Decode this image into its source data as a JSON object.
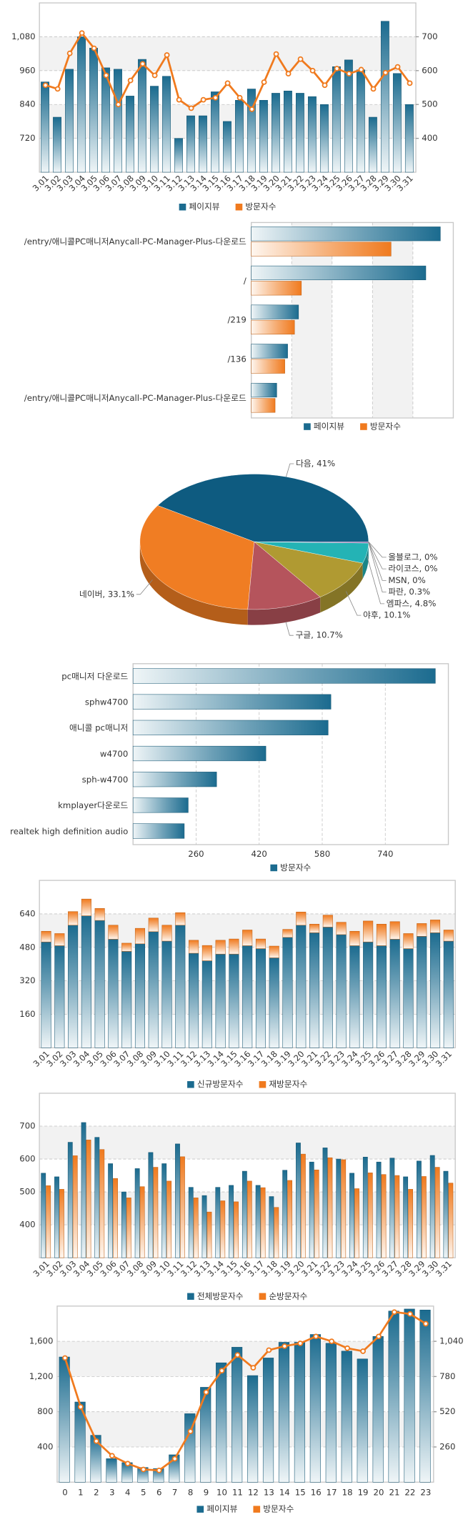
{
  "chart_data": [
    {
      "type": "bar",
      "categories": [
        "3.01",
        "3.02",
        "3.03",
        "3.04",
        "3.05",
        "3.06",
        "3.07",
        "3.08",
        "3.09",
        "3.10",
        "3.11",
        "3.12",
        "3.13",
        "3.14",
        "3.15",
        "3.16",
        "3.17",
        "3.18",
        "3.19",
        "3.20",
        "3.21",
        "3.22",
        "3.23",
        "3.24",
        "3.25",
        "3.26",
        "3.27",
        "3.28",
        "3.29",
        "3.30",
        "3.31"
      ],
      "series": [
        {
          "name": "페이지뷰",
          "color": "#1b6b8f",
          "type": "bar",
          "values": [
            920,
            795,
            965,
            1080,
            1040,
            970,
            965,
            870,
            1000,
            905,
            940,
            720,
            800,
            800,
            885,
            780,
            855,
            895,
            855,
            880,
            888,
            880,
            868,
            840,
            974,
            998,
            963,
            795,
            1135,
            950,
            840
          ]
        },
        {
          "name": "방문자수",
          "color": "#f07a1e",
          "type": "line",
          "axis": "y2",
          "values": [
            557,
            546,
            651,
            711,
            666,
            586,
            500,
            571,
            620,
            586,
            646,
            514,
            489,
            514,
            520,
            563,
            520,
            486,
            566,
            649,
            591,
            634,
            600,
            557,
            606,
            591,
            603,
            546,
            594,
            611,
            563
          ]
        }
      ],
      "ylim": [
        600,
        1200
      ],
      "yticks": [
        720,
        840,
        960,
        {
          "value": 1080,
          "label": "1,080"
        }
      ],
      "y2lim": [
        300,
        800
      ],
      "y2ticks": [
        400,
        500,
        600,
        700
      ],
      "grid": true,
      "bands": true,
      "legend": "bottom"
    },
    {
      "type": "barh",
      "categories": [
        "/entry/애니콜PC매니저Anycall-PC-Manager-Plus-다운로드",
        "/",
        "/219",
        "/136",
        "/entry/애니콜PC매니저Anycall-PC-Manager-Plus-다운로드"
      ],
      "series": [
        {
          "name": "페이지뷰",
          "color": "#1b6b8f",
          "values": [
            468,
            432,
            117,
            90,
            63
          ]
        },
        {
          "name": "방문자수",
          "color": "#f07a1e",
          "values": [
            346,
            124,
            107,
            83,
            59
          ]
        }
      ],
      "xlim": [
        0,
        500
      ],
      "xticks": [
        100,
        200,
        300,
        400
      ],
      "tick_labels": false,
      "grid": true,
      "bands": true,
      "legend": "bottom"
    },
    {
      "type": "pie",
      "labels": [
        "다음, 41%",
        "네이버, 33.1%",
        "구글, 10.7%",
        "야후, 10.1%",
        "엠파스, 4.8%",
        "파란, 0.3%",
        "MSN, 0%",
        "라이코스, 0%",
        "올블로그, 0%"
      ],
      "values": [
        41,
        33.1,
        10.7,
        10.1,
        4.8,
        0.3,
        0,
        0,
        0
      ],
      "colors": [
        "#0e5b80",
        "#f07d23",
        "#b5545c",
        "#b09a32",
        "#24b3b5",
        "#7a5aa0",
        "#5a8a3a",
        "#c0c0c0",
        "#888888"
      ]
    },
    {
      "type": "barh",
      "categories": [
        "pc매니저 다운로드",
        "sphw4700",
        "애니콜 pc매니저",
        "w4700",
        "sph-w4700",
        "kmplayer다운로드",
        "realtek high definition audio"
      ],
      "series": [
        {
          "name": "방문자수",
          "color": "#1b6b8f",
          "values": [
            867,
            602,
            595,
            437,
            312,
            240,
            230
          ]
        }
      ],
      "xlim": [
        100,
        900
      ],
      "xticks": [
        260,
        420,
        580,
        740
      ],
      "tick_labels": true,
      "grid": true,
      "bands": false,
      "legend": "bottom"
    },
    {
      "type": "bar",
      "stacked": true,
      "categories": [
        "3.01",
        "3.02",
        "3.03",
        "3.04",
        "3.05",
        "3.06",
        "3.07",
        "3.08",
        "3.09",
        "3.10",
        "3.11",
        "3.12",
        "3.13",
        "3.14",
        "3.15",
        "3.16",
        "3.17",
        "3.18",
        "3.19",
        "3.20",
        "3.21",
        "3.22",
        "3.23",
        "3.24",
        "3.25",
        "3.26",
        "3.27",
        "3.28",
        "3.29",
        "3.30",
        "3.31"
      ],
      "series": [
        {
          "name": "신규방문자수",
          "color": "#1b6b8f",
          "values": [
            506,
            488,
            586,
            631,
            609,
            519,
            461,
            497,
            555,
            510,
            586,
            452,
            416,
            448,
            448,
            488,
            474,
            430,
            528,
            586,
            550,
            577,
            541,
            488,
            506,
            488,
            519,
            474,
            533,
            550,
            510
          ]
        },
        {
          "name": "재방문자수",
          "color": "#f07a1e",
          "values": [
            51,
            58,
            65,
            80,
            57,
            67,
            39,
            74,
            65,
            76,
            60,
            62,
            73,
            66,
            72,
            75,
            46,
            56,
            38,
            63,
            41,
            57,
            59,
            69,
            100,
            103,
            84,
            72,
            61,
            61,
            53
          ]
        }
      ],
      "ylim": [
        0,
        800
      ],
      "yticks": [
        160,
        320,
        480,
        640
      ],
      "grid": true,
      "bands": true,
      "legend": "bottom"
    },
    {
      "type": "bar",
      "categories": [
        "3.01",
        "3.02",
        "3.03",
        "3.04",
        "3.05",
        "3.06",
        "3.07",
        "3.08",
        "3.09",
        "3.10",
        "3.11",
        "3.12",
        "3.13",
        "3.14",
        "3.15",
        "3.16",
        "3.17",
        "3.18",
        "3.19",
        "3.20",
        "3.21",
        "3.22",
        "3.23",
        "3.24",
        "3.25",
        "3.26",
        "3.27",
        "3.28",
        "3.29",
        "3.30",
        "3.31"
      ],
      "series": [
        {
          "name": "전체방문자수",
          "color": "#1b6b8f",
          "values": [
            557,
            546,
            651,
            711,
            666,
            586,
            500,
            571,
            620,
            586,
            646,
            514,
            489,
            514,
            520,
            563,
            520,
            486,
            566,
            649,
            591,
            634,
            600,
            557,
            606,
            591,
            603,
            546,
            594,
            611,
            563
          ]
        },
        {
          "name": "순방문자수",
          "color": "#f07a1e",
          "values": [
            519,
            508,
            610,
            658,
            629,
            541,
            482,
            516,
            575,
            533,
            607,
            482,
            439,
            473,
            470,
            533,
            513,
            453,
            535,
            615,
            567,
            604,
            598,
            510,
            558,
            553,
            550,
            508,
            547,
            575,
            527
          ]
        }
      ],
      "ylim": [
        300,
        800
      ],
      "yticks": [
        400,
        500,
        600,
        700
      ],
      "grid": true,
      "bands": true,
      "legend": "bottom"
    },
    {
      "type": "bar",
      "categories": [
        "0",
        "1",
        "2",
        "3",
        "4",
        "5",
        "6",
        "7",
        "8",
        "9",
        "10",
        "11",
        "12",
        "13",
        "14",
        "15",
        "16",
        "17",
        "18",
        "19",
        "20",
        "21",
        "22",
        "23"
      ],
      "series": [
        {
          "name": "페이지뷰",
          "color": "#1b6b8f",
          "type": "bar",
          "values": [
            1422,
            911,
            533,
            267,
            222,
            167,
            155,
            311,
            778,
            1078,
            1356,
            1533,
            1211,
            1411,
            1589,
            1589,
            1678,
            1578,
            1489,
            1400,
            1656,
            1944,
            1967,
            1956
          ]
        },
        {
          "name": "방문자수",
          "color": "#f07a1e",
          "type": "line",
          "axis": "y2",
          "values": [
            917,
            556,
            303,
            195,
            137,
            94,
            87,
            173,
            375,
            664,
            823,
            939,
            845,
            975,
            1004,
            1025,
            1076,
            1040,
            989,
            967,
            1076,
            1256,
            1242,
            1170
          ]
        }
      ],
      "ylim": [
        0,
        2000
      ],
      "yticks": [
        400,
        800,
        {
          "value": 1200,
          "label": "1,200"
        },
        {
          "value": 1600,
          "label": "1,600"
        }
      ],
      "y2lim": [
        0,
        1300
      ],
      "y2ticks": [
        260,
        520,
        780,
        {
          "value": 1040,
          "label": "1,040"
        }
      ],
      "grid": true,
      "bands": true,
      "legend": "bottom"
    }
  ]
}
